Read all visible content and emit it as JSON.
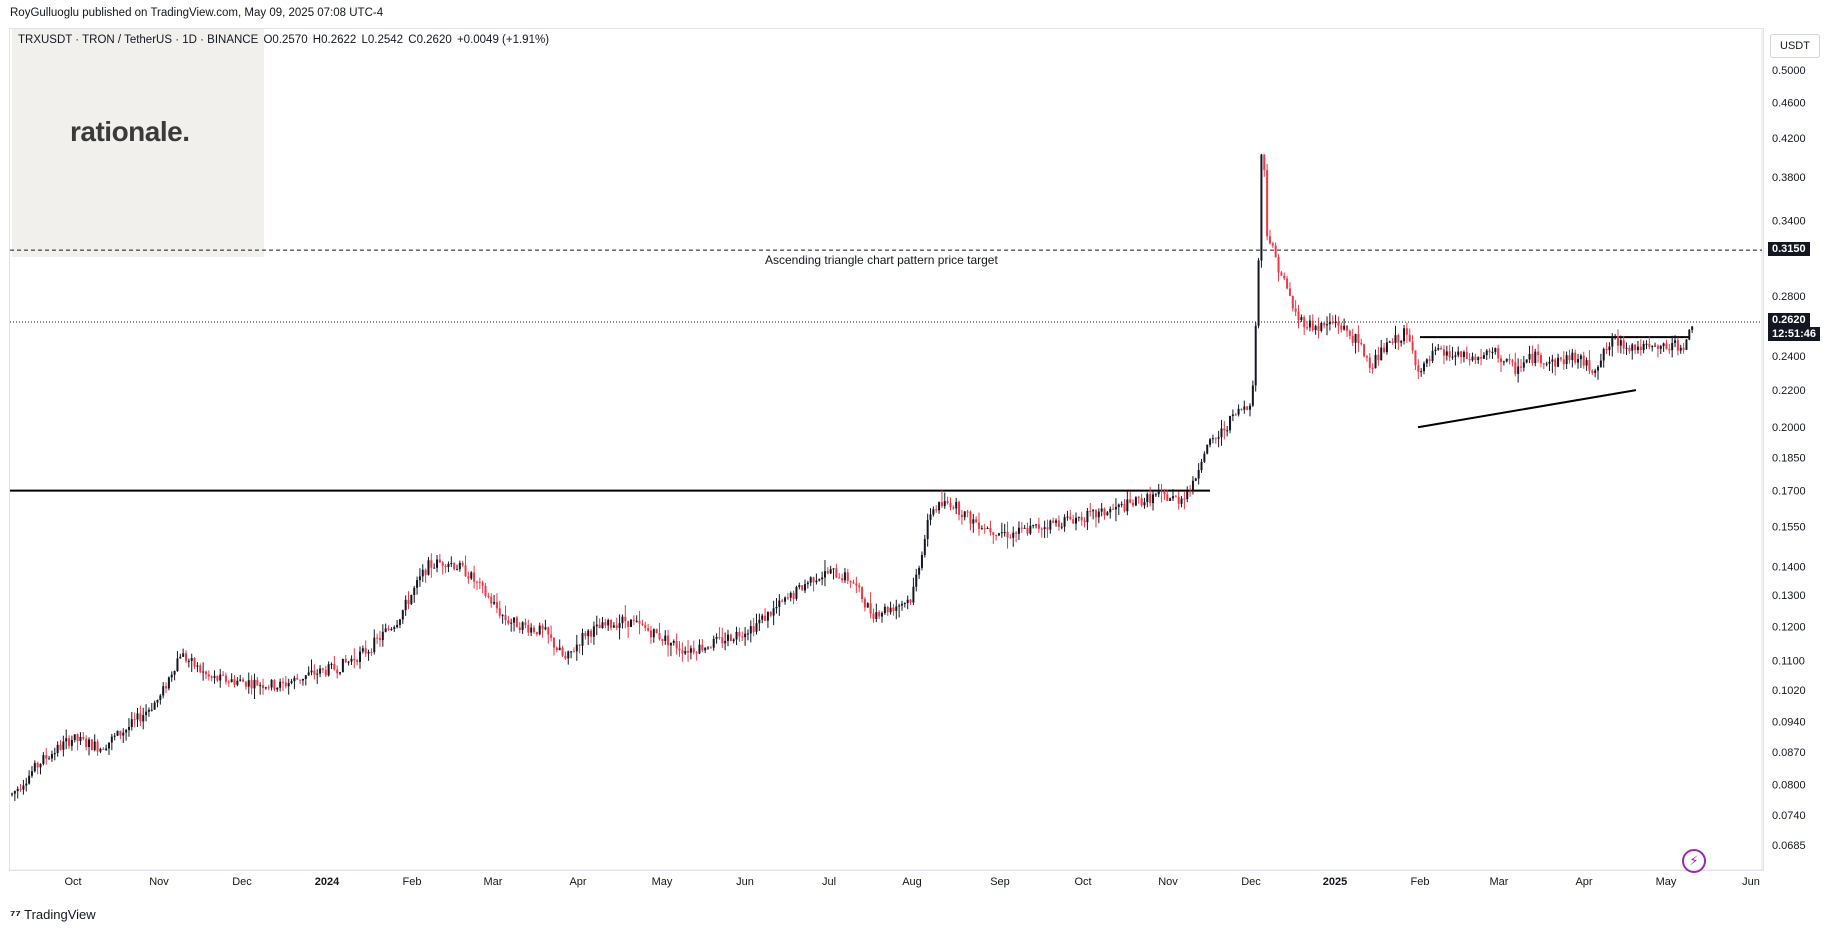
{
  "header": {
    "published_text": "RoyGulluoglu published on TradingView.com, May 09, 2025 07:08 UTC-4"
  },
  "symbol": {
    "name": "TRXUSDT · TRON / TetherUS · 1D · BINANCE",
    "open": "O0.2570",
    "high": "H0.2622",
    "low": "L0.2542",
    "close": "C0.2620",
    "change": "+0.0049 (+1.91%)"
  },
  "logo": {
    "text": "rationale."
  },
  "currency": "USDT",
  "annotation": "Ascending triangle chart pattern price target",
  "price_tags": {
    "target": "0.3150",
    "current": "0.2620",
    "countdown": "12:51:46"
  },
  "footer": {
    "brand": "TradingView"
  },
  "colors": {
    "up": "#131722",
    "down": "#f23645",
    "tag_bg": "#131722"
  },
  "chart_data": {
    "type": "candlestick",
    "y_ticks": [
      "0.5000",
      "0.4600",
      "0.4200",
      "0.3800",
      "0.3400",
      "0.2800",
      "0.2400",
      "0.2200",
      "0.2000",
      "0.1850",
      "0.1700",
      "0.1550",
      "0.1400",
      "0.1300",
      "0.1200",
      "0.1100",
      "0.1020",
      "0.0940",
      "0.0870",
      "0.0800",
      "0.0740",
      "0.0685"
    ],
    "x_ticks": [
      "Oct",
      "Nov",
      "Dec",
      "2024",
      "Feb",
      "Mar",
      "Apr",
      "May",
      "Jun",
      "Jul",
      "Aug",
      "Sep",
      "Oct",
      "Nov",
      "Dec",
      "2025",
      "Feb",
      "Mar",
      "Apr",
      "May",
      "Jun"
    ],
    "price_path": [
      [
        0,
        0.078
      ],
      [
        30,
        0.085
      ],
      [
        60,
        0.09
      ],
      [
        90,
        0.088
      ],
      [
        120,
        0.093
      ],
      [
        150,
        0.1
      ],
      [
        170,
        0.112
      ],
      [
        200,
        0.105
      ],
      [
        240,
        0.104
      ],
      [
        270,
        0.103
      ],
      [
        300,
        0.106
      ],
      [
        330,
        0.108
      ],
      [
        360,
        0.113
      ],
      [
        390,
        0.122
      ],
      [
        420,
        0.14
      ],
      [
        440,
        0.142
      ],
      [
        460,
        0.138
      ],
      [
        480,
        0.13
      ],
      [
        500,
        0.122
      ],
      [
        520,
        0.12
      ],
      [
        540,
        0.118
      ],
      [
        560,
        0.11
      ],
      [
        580,
        0.118
      ],
      [
        600,
        0.12
      ],
      [
        620,
        0.122
      ],
      [
        650,
        0.118
      ],
      [
        680,
        0.113
      ],
      [
        700,
        0.114
      ],
      [
        720,
        0.116
      ],
      [
        750,
        0.12
      ],
      [
        770,
        0.125
      ],
      [
        790,
        0.13
      ],
      [
        810,
        0.136
      ],
      [
        830,
        0.138
      ],
      [
        850,
        0.135
      ],
      [
        870,
        0.124
      ],
      [
        890,
        0.126
      ],
      [
        910,
        0.129
      ],
      [
        930,
        0.162
      ],
      [
        950,
        0.165
      ],
      [
        970,
        0.158
      ],
      [
        990,
        0.154
      ],
      [
        1010,
        0.152
      ],
      [
        1040,
        0.155
      ],
      [
        1070,
        0.158
      ],
      [
        1100,
        0.16
      ],
      [
        1130,
        0.164
      ],
      [
        1160,
        0.168
      ],
      [
        1180,
        0.166
      ],
      [
        1195,
        0.172
      ],
      [
        1205,
        0.188
      ],
      [
        1220,
        0.195
      ],
      [
        1235,
        0.205
      ],
      [
        1245,
        0.21
      ],
      [
        1255,
        0.215
      ],
      [
        1262,
        0.32
      ],
      [
        1265,
        0.435
      ],
      [
        1270,
        0.33
      ],
      [
        1280,
        0.305
      ],
      [
        1290,
        0.285
      ],
      [
        1300,
        0.265
      ],
      [
        1320,
        0.258
      ],
      [
        1340,
        0.262
      ],
      [
        1360,
        0.25
      ],
      [
        1375,
        0.235
      ],
      [
        1390,
        0.245
      ],
      [
        1410,
        0.255
      ],
      [
        1425,
        0.23
      ],
      [
        1440,
        0.242
      ],
      [
        1460,
        0.24
      ],
      [
        1480,
        0.238
      ],
      [
        1500,
        0.242
      ],
      [
        1520,
        0.232
      ],
      [
        1540,
        0.24
      ],
      [
        1560,
        0.236
      ],
      [
        1580,
        0.24
      ],
      [
        1600,
        0.232
      ],
      [
        1620,
        0.25
      ],
      [
        1640,
        0.246
      ],
      [
        1660,
        0.244
      ],
      [
        1680,
        0.246
      ],
      [
        1695,
        0.248
      ],
      [
        1700,
        0.262
      ]
    ],
    "lines": {
      "resistance_2024": 0.17,
      "target": 0.315,
      "current": 0.262,
      "triangle_top": 0.252,
      "triangle_support_start": 0.2,
      "triangle_support_end": 0.22
    }
  }
}
